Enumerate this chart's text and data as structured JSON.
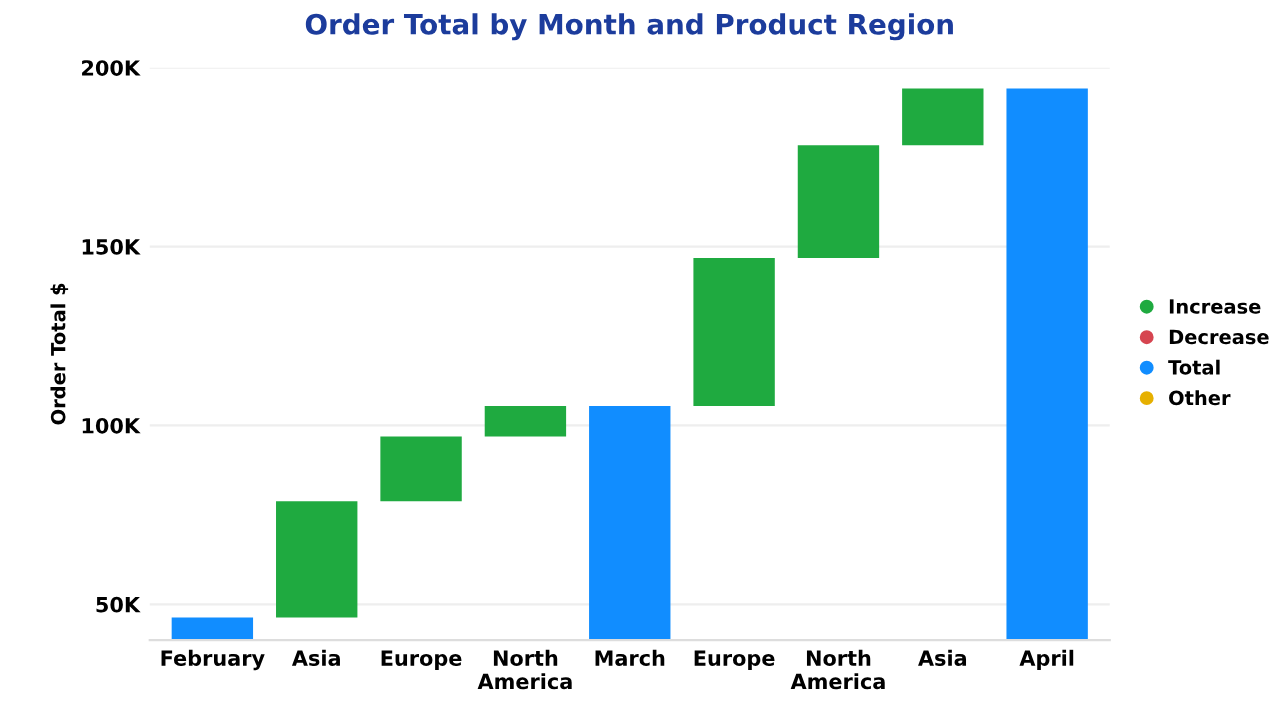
{
  "chart_data": {
    "type": "bar",
    "title": "Order Total by Month and Product Region",
    "ylabel": "Order Total $",
    "categories": [
      "February",
      "Asia",
      "Europe",
      "North\nAmerica",
      "March",
      "Europe",
      "North\nAmerica",
      "Asia",
      "April"
    ],
    "series": [
      {
        "name": "Increase",
        "color": "#1faa40",
        "values": [
          null,
          32500,
          18100,
          8500,
          null,
          41400,
          31500,
          15900,
          null
        ],
        "base": [
          null,
          46300,
          78800,
          96900,
          null,
          105400,
          146800,
          178300,
          null
        ]
      },
      {
        "name": "Decrease",
        "color": "#d64550",
        "values": [
          null,
          null,
          null,
          null,
          null,
          null,
          null,
          null,
          null
        ]
      },
      {
        "name": "Total",
        "color": "#118dff",
        "values": [
          46300,
          null,
          null,
          null,
          105400,
          null,
          null,
          null,
          194200
        ]
      },
      {
        "name": "Other",
        "color": "#e6b000",
        "values": [
          null,
          null,
          null,
          null,
          null,
          null,
          null,
          null,
          null
        ]
      }
    ],
    "ylim": [
      40000,
      200000
    ],
    "yticks": [
      {
        "value": 50000,
        "label": "50K"
      },
      {
        "value": 100000,
        "label": "100K"
      },
      {
        "value": 150000,
        "label": "150K"
      },
      {
        "value": 200000,
        "label": "200K"
      }
    ],
    "grid": "y",
    "legend": "right"
  }
}
